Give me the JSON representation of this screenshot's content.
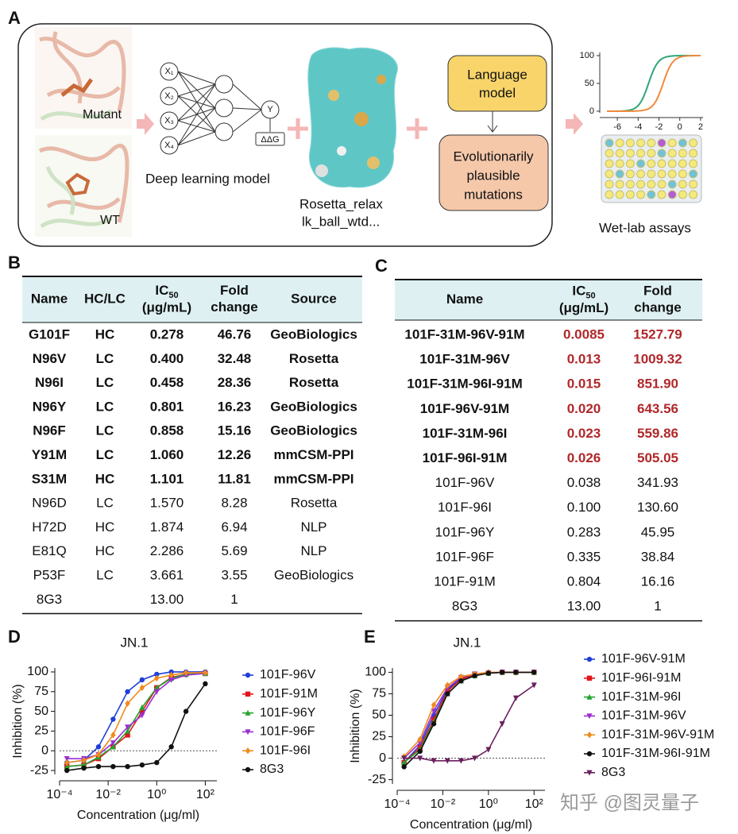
{
  "panel_labels": {
    "A": "A",
    "B": "B",
    "C": "C"
  },
  "panel_a": {
    "mutant": "Mutant",
    "wt": "WT",
    "inputs": [
      "X₁",
      "X₂",
      "X₃",
      "X₄"
    ],
    "output": "Y",
    "ddg": "ΔΔG",
    "deep_learning": "Deep learning model",
    "rosetta": [
      "Rosetta_relax",
      "lk_ball_wtd..."
    ],
    "language_model": [
      "Language",
      "model"
    ],
    "evolutionary": [
      "Evolutionarily",
      "plausible",
      "mutations"
    ],
    "wet_lab": "Wet-lab assays",
    "mini_chart": {
      "yticks": [
        0,
        50,
        100
      ],
      "xticks": [
        -6,
        -4,
        -2,
        0,
        2
      ]
    }
  },
  "table_b": {
    "headers": [
      {
        "lines": [
          "Name"
        ]
      },
      {
        "lines": [
          "HC/LC"
        ]
      },
      {
        "main": "IC",
        "sub": "50",
        "unit": "(μg/mL)"
      },
      {
        "lines": [
          "Fold",
          "change"
        ]
      },
      {
        "lines": [
          "Source"
        ]
      }
    ],
    "emphasized_rows": 7,
    "rows": [
      [
        "G101F",
        "HC",
        "0.278",
        "46.76",
        "GeoBiologics"
      ],
      [
        "N96V",
        "LC",
        "0.400",
        "32.48",
        "Rosetta"
      ],
      [
        "N96I",
        "LC",
        "0.458",
        "28.36",
        "Rosetta"
      ],
      [
        "N96Y",
        "LC",
        "0.801",
        "16.23",
        "GeoBiologics"
      ],
      [
        "N96F",
        "LC",
        "0.858",
        "15.16",
        "GeoBiologics"
      ],
      [
        "Y91M",
        "LC",
        "1.060",
        "12.26",
        "mmCSM-PPI"
      ],
      [
        "S31M",
        "HC",
        "1.101",
        "11.81",
        "mmCSM-PPI"
      ],
      [
        "N96D",
        "LC",
        "1.570",
        "8.28",
        "Rosetta"
      ],
      [
        "H72D",
        "HC",
        "1.874",
        "6.94",
        "NLP"
      ],
      [
        "E81Q",
        "HC",
        "2.286",
        "5.69",
        "NLP"
      ],
      [
        "P53F",
        "LC",
        "3.661",
        "3.55",
        "GeoBiologics"
      ],
      [
        "8G3",
        null,
        "13.00",
        "1",
        null
      ]
    ]
  },
  "table_c": {
    "headers": [
      {
        "lines": [
          "Name"
        ]
      },
      {
        "main": "IC",
        "sub": "50",
        "unit": "(μg/mL)"
      },
      {
        "lines": [
          "Fold",
          "change"
        ]
      }
    ],
    "emphasized_rows": 6,
    "emphasis_color": "#b0272a",
    "rows": [
      [
        "101F-31M-96V-91M",
        "0.0085",
        "1527.79"
      ],
      [
        "101F-31M-96V",
        "0.013",
        "1009.32"
      ],
      [
        "101F-31M-96I-91M",
        "0.015",
        "851.90"
      ],
      [
        "101F-96V-91M",
        "0.020",
        "643.56"
      ],
      [
        "101F-31M-96I",
        "0.023",
        "559.86"
      ],
      [
        "101F-96I-91M",
        "0.026",
        "505.05"
      ],
      [
        "101F-96V",
        "0.038",
        "341.93"
      ],
      [
        "101F-96I",
        "0.100",
        "130.60"
      ],
      [
        "101F-96Y",
        "0.283",
        "45.95"
      ],
      [
        "101F-96F",
        "0.335",
        "38.84"
      ],
      [
        "101F-91M",
        "0.804",
        "16.16"
      ],
      [
        "8G3",
        "13.00",
        "1"
      ]
    ]
  },
  "chart_data": [
    {
      "panel": "D",
      "type": "line",
      "title": "JN.1",
      "x_label": "Concentration (μg/ml)",
      "y_label": "Inhibition (%)",
      "x_log": true,
      "zero_line": true,
      "x": [
        0.0002,
        0.001,
        0.004,
        0.016,
        0.063,
        0.25,
        1,
        4,
        16,
        100
      ],
      "xlim": [
        0.0001,
        300
      ],
      "xticks": [
        {
          "value": 0.0001,
          "label": "10⁻⁴"
        },
        {
          "value": 0.01,
          "label": "10⁻²"
        },
        {
          "value": 1,
          "label": "10⁰"
        },
        {
          "value": 100,
          "label": "10²"
        }
      ],
      "ylim": [
        -30,
        105
      ],
      "yticks": [
        -25,
        0,
        25,
        50,
        75,
        100
      ],
      "series": [
        {
          "name": "101F-96V",
          "color": "#1f3fd6",
          "marker": "circle",
          "values": [
            -15,
            -12,
            5,
            40,
            75,
            90,
            97,
            100,
            100,
            100
          ]
        },
        {
          "name": "101F-91M",
          "color": "#e3161b",
          "marker": "square",
          "values": [
            -20,
            -18,
            -10,
            5,
            20,
            50,
            80,
            93,
            97,
            98
          ]
        },
        {
          "name": "101F-96Y",
          "color": "#22a32e",
          "marker": "triangle",
          "values": [
            -20,
            -18,
            -8,
            5,
            25,
            55,
            80,
            92,
            97,
            98
          ]
        },
        {
          "name": "101F-96F",
          "color": "#9a2fd0",
          "marker": "triangle-down",
          "values": [
            -10,
            -10,
            -5,
            10,
            30,
            45,
            75,
            90,
            96,
            98
          ]
        },
        {
          "name": "101F-96I",
          "color": "#f08a1c",
          "marker": "diamond",
          "values": [
            -15,
            -12,
            -5,
            20,
            60,
            80,
            92,
            96,
            99,
            99
          ]
        },
        {
          "name": "8G3",
          "color": "#111111",
          "marker": "circle",
          "values": [
            -25,
            -22,
            -20,
            -20,
            -20,
            -18,
            -15,
            5,
            50,
            85
          ]
        }
      ]
    },
    {
      "panel": "E",
      "type": "line",
      "title": "JN.1",
      "x_label": "Concentration (μg/ml)",
      "y_label": "Inhibition (%)",
      "x_log": true,
      "zero_line": true,
      "x": [
        0.0002,
        0.001,
        0.004,
        0.016,
        0.063,
        0.25,
        1,
        4,
        16,
        100
      ],
      "xlim": [
        0.0001,
        300
      ],
      "xticks": [
        {
          "value": 0.0001,
          "label": "10⁻⁴"
        },
        {
          "value": 0.01,
          "label": "10⁻²"
        },
        {
          "value": 1,
          "label": "10⁰"
        },
        {
          "value": 100,
          "label": "10²"
        }
      ],
      "ylim": [
        -30,
        105
      ],
      "yticks": [
        -25,
        0,
        25,
        50,
        75,
        100
      ],
      "series": [
        {
          "name": "101F-96V-91M",
          "color": "#1f3fd6",
          "marker": "circle",
          "values": [
            -5,
            15,
            50,
            80,
            93,
            97,
            99,
            100,
            100,
            100
          ]
        },
        {
          "name": "101F-96I-91M",
          "color": "#e3161b",
          "marker": "square",
          "values": [
            -5,
            12,
            45,
            78,
            92,
            97,
            99,
            100,
            100,
            100
          ]
        },
        {
          "name": "101F-31M-96I",
          "color": "#22a32e",
          "marker": "triangle",
          "values": [
            -5,
            10,
            42,
            75,
            90,
            96,
            99,
            100,
            100,
            100
          ]
        },
        {
          "name": "101F-31M-96V",
          "color": "#9a2fd0",
          "marker": "triangle-down",
          "values": [
            0,
            18,
            55,
            82,
            94,
            98,
            99,
            100,
            100,
            100
          ]
        },
        {
          "name": "101F-31M-96V-91M",
          "color": "#f08a1c",
          "marker": "diamond",
          "values": [
            2,
            22,
            62,
            85,
            95,
            98,
            100,
            100,
            100,
            100
          ]
        },
        {
          "name": "101F-31M-96I-91M",
          "color": "#111111",
          "marker": "circle",
          "values": [
            -10,
            8,
            40,
            75,
            90,
            96,
            99,
            100,
            100,
            100
          ]
        },
        {
          "name": "8G3",
          "color": "#6b1f5e",
          "marker": "triangle-down",
          "values": [
            0,
            0,
            -3,
            -3,
            -3,
            0,
            10,
            40,
            70,
            85
          ]
        }
      ]
    }
  ],
  "watermark": "知乎 @图灵量子"
}
